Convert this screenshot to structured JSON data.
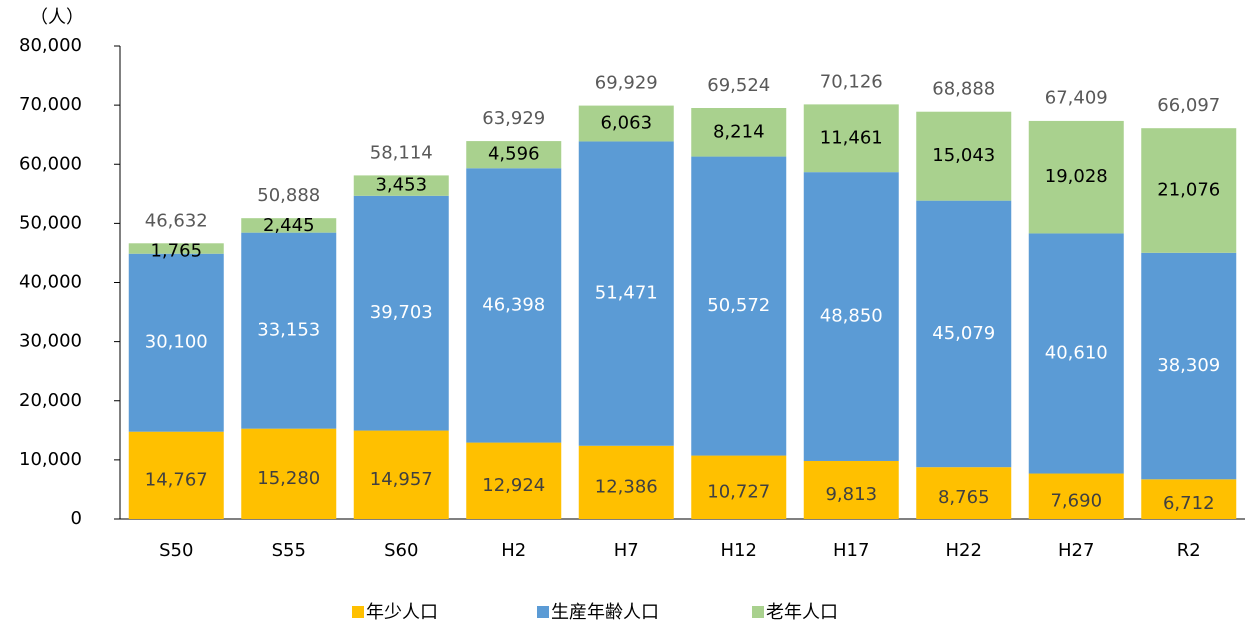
{
  "chart_data": {
    "type": "stacked_bar",
    "y_label": "（人）",
    "categories": [
      "S50",
      "S55",
      "S60",
      "H2",
      "H7",
      "H12",
      "H17",
      "H22",
      "H27",
      "R2"
    ],
    "series": [
      {
        "name": "年少人口",
        "color": "#FFC000",
        "label_color": "#404040",
        "values": [
          14767,
          15280,
          14957,
          12924,
          12386,
          10727,
          9813,
          8765,
          7690,
          6712
        ],
        "value_labels": [
          "14,767",
          "15,280",
          "14,957",
          "12,924",
          "12,386",
          "10,727",
          "9,813",
          "8,765",
          "7,690",
          "6,712"
        ]
      },
      {
        "name": "生産年齢人口",
        "color": "#5B9BD5",
        "label_color": "#ffffff",
        "values": [
          30100,
          33153,
          39703,
          46398,
          51471,
          50572,
          48850,
          45079,
          40610,
          38309
        ],
        "value_labels": [
          "30,100",
          "33,153",
          "39,703",
          "46,398",
          "51,471",
          "50,572",
          "48,850",
          "45,079",
          "40,610",
          "38,309"
        ]
      },
      {
        "name": "老年人口",
        "color": "#A9D18E",
        "label_color": "#000000",
        "values": [
          1765,
          2445,
          3453,
          4596,
          6063,
          8214,
          11461,
          15043,
          19028,
          21076
        ],
        "value_labels": [
          "1,765",
          "2,445",
          "3,453",
          "4,596",
          "6,063",
          "8,214",
          "11,461",
          "15,043",
          "19,028",
          "21,076"
        ]
      }
    ],
    "totals": [
      46632,
      50888,
      58114,
      63929,
      69929,
      69524,
      70126,
      68888,
      67409,
      66097
    ],
    "total_labels": [
      "46,632",
      "50,888",
      "58,114",
      "63,929",
      "69,929",
      "69,524",
      "70,126",
      "68,888",
      "67,409",
      "66,097"
    ],
    "ylim": [
      0,
      80000
    ],
    "yticks": [
      0,
      {
        "value": 10000,
        "label": "10,000"
      },
      {
        "value": 20000,
        "label": "20,000"
      },
      {
        "value": 30000,
        "label": "30,000"
      },
      {
        "value": 40000,
        "label": "40,000"
      },
      {
        "value": 50000,
        "label": "50,000"
      },
      {
        "value": 60000,
        "label": "60,000"
      },
      {
        "value": 70000,
        "label": "70,000"
      },
      {
        "value": 80000,
        "label": "80,000"
      }
    ],
    "legend": "bottom"
  }
}
